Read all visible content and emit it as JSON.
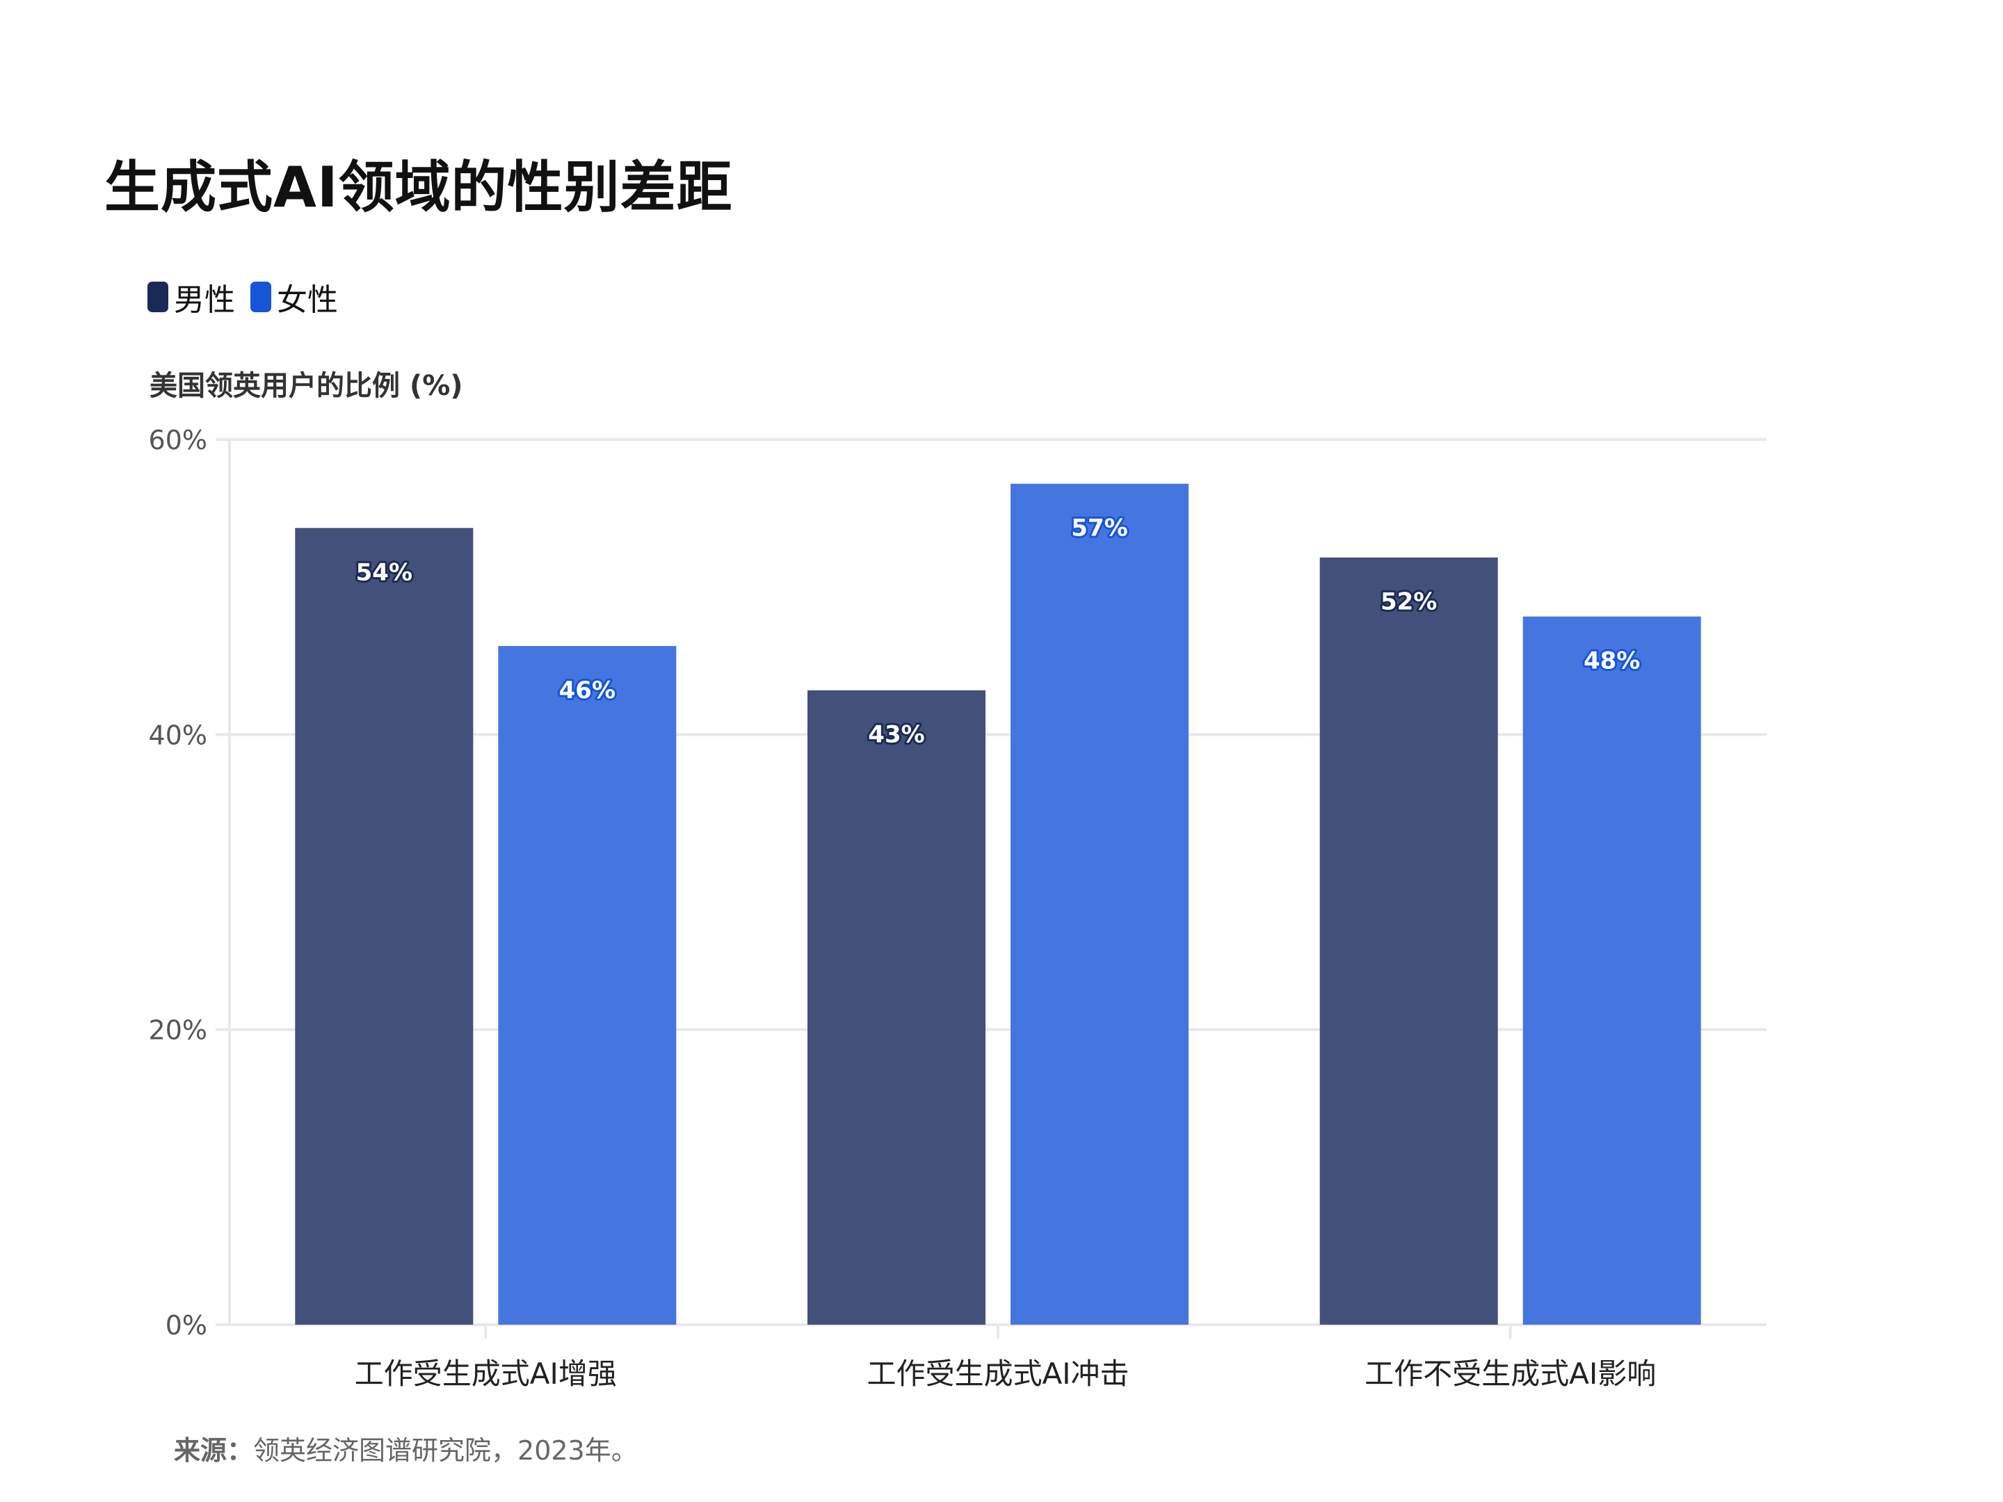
{
  "colors": {
    "male": "#42507A",
    "female": "#4576E0",
    "male_legend": "#1B2A55",
    "female_legend": "#1655D8",
    "grid": "#E8E8E8"
  },
  "chart_data": {
    "type": "bar",
    "title": "生成式AI领域的性别差距",
    "ylabel": "美国领英用户的比例 (%)",
    "xlabel": "",
    "categories": [
      "工作受生成式AI增强",
      "工作受生成式AI冲击",
      "工作不受生成式AI影响"
    ],
    "series": [
      {
        "name": "男性",
        "values": [
          54,
          43,
          52
        ]
      },
      {
        "name": "女性",
        "values": [
          46,
          57,
          48
        ]
      }
    ],
    "ylim": [
      0,
      60
    ],
    "yticks": [
      0,
      20,
      40,
      60
    ],
    "ytick_labels": [
      "0%",
      "20%",
      "40%",
      "60%"
    ],
    "value_labels": [
      [
        "54%",
        "43%",
        "52%"
      ],
      [
        "46%",
        "57%",
        "48%"
      ]
    ],
    "grid": true,
    "legend_position": "top-left"
  },
  "source": {
    "label": "来源：",
    "text": "领英经济图谱研究院，2023年。"
  }
}
